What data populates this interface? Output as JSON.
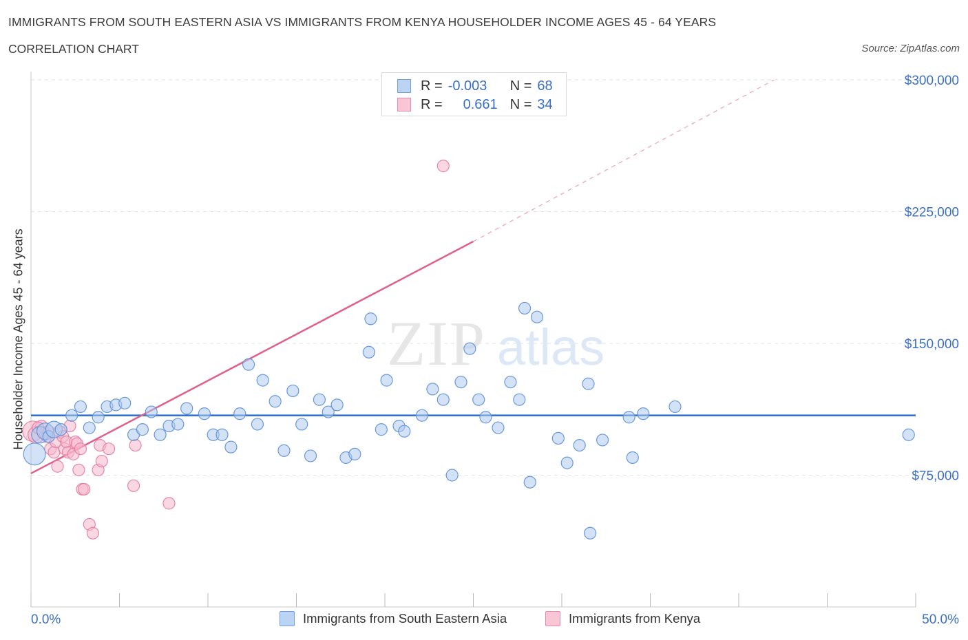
{
  "header": {
    "title": "IMMIGRANTS FROM SOUTH EASTERN ASIA VS IMMIGRANTS FROM KENYA HOUSEHOLDER INCOME AGES 45 - 64 YEARS",
    "subtitle": "CORRELATION CHART",
    "source": "Source: ZipAtlas.com"
  },
  "watermark": {
    "zip": "ZIP",
    "atlas": "atlas"
  },
  "stats_legend": {
    "series1": {
      "r_label": "R =",
      "r_value": "-0.003",
      "n_label": "N =",
      "n_value": "68"
    },
    "series2": {
      "r_label": "R =",
      "r_value": "0.661",
      "n_label": "N =",
      "n_value": "34"
    }
  },
  "colors": {
    "blue_fill": "#aecbf0",
    "blue_stroke": "#5b8fd6",
    "blue_line": "#2a6fd0",
    "pink_fill": "#f6b8cc",
    "pink_stroke": "#e57a9e",
    "pink_line": "#e0608a",
    "axis_text": "#3a6fc4",
    "grid": "#dde3ea"
  },
  "chart_data": {
    "type": "scatter",
    "title": "IMMIGRANTS FROM SOUTH EASTERN ASIA VS IMMIGRANTS FROM KENYA HOUSEHOLDER INCOME AGES 45 - 64 YEARS",
    "xlabel": "",
    "ylabel": "Householder Income Ages 45 - 64 years",
    "xlim": [
      0,
      50
    ],
    "ylim": [
      0,
      300000
    ],
    "x_tick_labels": [
      "0.0%",
      "50.0%"
    ],
    "y_ticks": [
      75000,
      150000,
      225000,
      300000
    ],
    "y_tick_labels": [
      "$75,000",
      "$150,000",
      "$225,000",
      "$300,000"
    ],
    "series": [
      {
        "name": "Immigrants from South Eastern Asia",
        "color": "blue",
        "points": [
          [
            0.2,
            87000,
            3.5
          ],
          [
            0.5,
            98000,
            2
          ],
          [
            0.8,
            100000,
            2
          ],
          [
            1.0,
            97000,
            1
          ],
          [
            1.3,
            101000,
            2
          ],
          [
            1.7,
            101000,
            1
          ],
          [
            2.3,
            109000,
            1
          ],
          [
            2.8,
            114000,
            1
          ],
          [
            3.3,
            102000,
            1
          ],
          [
            3.8,
            108000,
            1
          ],
          [
            4.3,
            114000,
            1
          ],
          [
            4.8,
            115000,
            1
          ],
          [
            5.3,
            116000,
            1
          ],
          [
            5.8,
            98000,
            1
          ],
          [
            6.3,
            101000,
            1
          ],
          [
            6.8,
            111000,
            1
          ],
          [
            7.3,
            98000,
            1
          ],
          [
            7.8,
            103000,
            1
          ],
          [
            8.3,
            104000,
            1
          ],
          [
            8.8,
            113000,
            1
          ],
          [
            9.8,
            110000,
            1
          ],
          [
            10.3,
            98000,
            1
          ],
          [
            10.8,
            98000,
            1
          ],
          [
            11.3,
            91000,
            1
          ],
          [
            11.8,
            110000,
            1
          ],
          [
            12.3,
            138000,
            1
          ],
          [
            12.8,
            104000,
            1
          ],
          [
            13.1,
            129000,
            1
          ],
          [
            13.8,
            117000,
            1
          ],
          [
            14.3,
            89000,
            1
          ],
          [
            14.8,
            123000,
            1
          ],
          [
            15.3,
            104000,
            1
          ],
          [
            15.8,
            86000,
            1
          ],
          [
            16.3,
            118000,
            1
          ],
          [
            16.8,
            111000,
            1
          ],
          [
            17.3,
            115000,
            1
          ],
          [
            17.8,
            85000,
            1
          ],
          [
            18.3,
            87000,
            1
          ],
          [
            19.1,
            145000,
            1
          ],
          [
            19.2,
            164000,
            1
          ],
          [
            19.8,
            101000,
            1
          ],
          [
            20.1,
            129000,
            1
          ],
          [
            20.8,
            103000,
            1
          ],
          [
            21.1,
            100000,
            1
          ],
          [
            22.1,
            109000,
            1
          ],
          [
            22.7,
            124000,
            1
          ],
          [
            23.3,
            118000,
            1
          ],
          [
            23.8,
            75000,
            1
          ],
          [
            24.3,
            128000,
            1
          ],
          [
            24.8,
            147000,
            1
          ],
          [
            25.3,
            118000,
            1
          ],
          [
            25.7,
            108000,
            1
          ],
          [
            26.4,
            102000,
            1
          ],
          [
            27.1,
            128000,
            1
          ],
          [
            27.6,
            118000,
            1
          ],
          [
            27.9,
            170000,
            1
          ],
          [
            28.2,
            71000,
            1
          ],
          [
            28.6,
            165000,
            1
          ],
          [
            29.8,
            96000,
            1
          ],
          [
            30.3,
            82000,
            1
          ],
          [
            31.0,
            92000,
            1
          ],
          [
            31.5,
            127000,
            1
          ],
          [
            31.6,
            42000,
            1
          ],
          [
            32.3,
            95000,
            1
          ],
          [
            33.8,
            108000,
            1
          ],
          [
            34.0,
            85000,
            1
          ],
          [
            34.6,
            110000,
            1
          ],
          [
            36.4,
            114000,
            1
          ],
          [
            49.6,
            98000,
            1
          ]
        ],
        "trend": {
          "x": [
            0,
            50
          ],
          "y": [
            109000,
            109000
          ]
        }
      },
      {
        "name": "Immigrants from Kenya",
        "color": "pink",
        "points": [
          [
            0.1,
            100000,
            3
          ],
          [
            0.3,
            98000,
            2
          ],
          [
            0.6,
            103000,
            1
          ],
          [
            0.8,
            99000,
            1
          ],
          [
            0.9,
            97000,
            1
          ],
          [
            1.0,
            100000,
            1
          ],
          [
            1.1,
            90000,
            1
          ],
          [
            1.3,
            88000,
            1
          ],
          [
            1.4,
            94000,
            1
          ],
          [
            1.5,
            80000,
            1
          ],
          [
            1.6,
            100000,
            1
          ],
          [
            1.8,
            97000,
            1
          ],
          [
            1.9,
            90000,
            1
          ],
          [
            2.0,
            94000,
            1
          ],
          [
            2.1,
            88000,
            1
          ],
          [
            2.2,
            103000,
            1
          ],
          [
            2.4,
            87000,
            1
          ],
          [
            2.5,
            94000,
            1
          ],
          [
            2.6,
            93000,
            1
          ],
          [
            2.7,
            78000,
            1
          ],
          [
            2.8,
            90000,
            1
          ],
          [
            2.9,
            67000,
            1
          ],
          [
            3.0,
            67000,
            1
          ],
          [
            3.3,
            47000,
            1
          ],
          [
            3.5,
            42000,
            1
          ],
          [
            3.8,
            78000,
            1
          ],
          [
            3.9,
            92000,
            1
          ],
          [
            4.0,
            83000,
            1
          ],
          [
            4.4,
            90000,
            1
          ],
          [
            5.8,
            69000,
            1
          ],
          [
            5.9,
            92000,
            1
          ],
          [
            7.8,
            59000,
            1
          ],
          [
            23.3,
            251000,
            1
          ],
          [
            0.4,
            102000,
            1
          ]
        ],
        "trend": {
          "x": [
            0,
            25
          ],
          "y": [
            76000,
            208000
          ]
        },
        "trend_extension": {
          "x": [
            25,
            42
          ],
          "y": [
            208000,
            300000
          ]
        }
      }
    ]
  },
  "bottom_legend": {
    "series1_label": "Immigrants from South Eastern Asia",
    "series2_label": "Immigrants from Kenya"
  }
}
